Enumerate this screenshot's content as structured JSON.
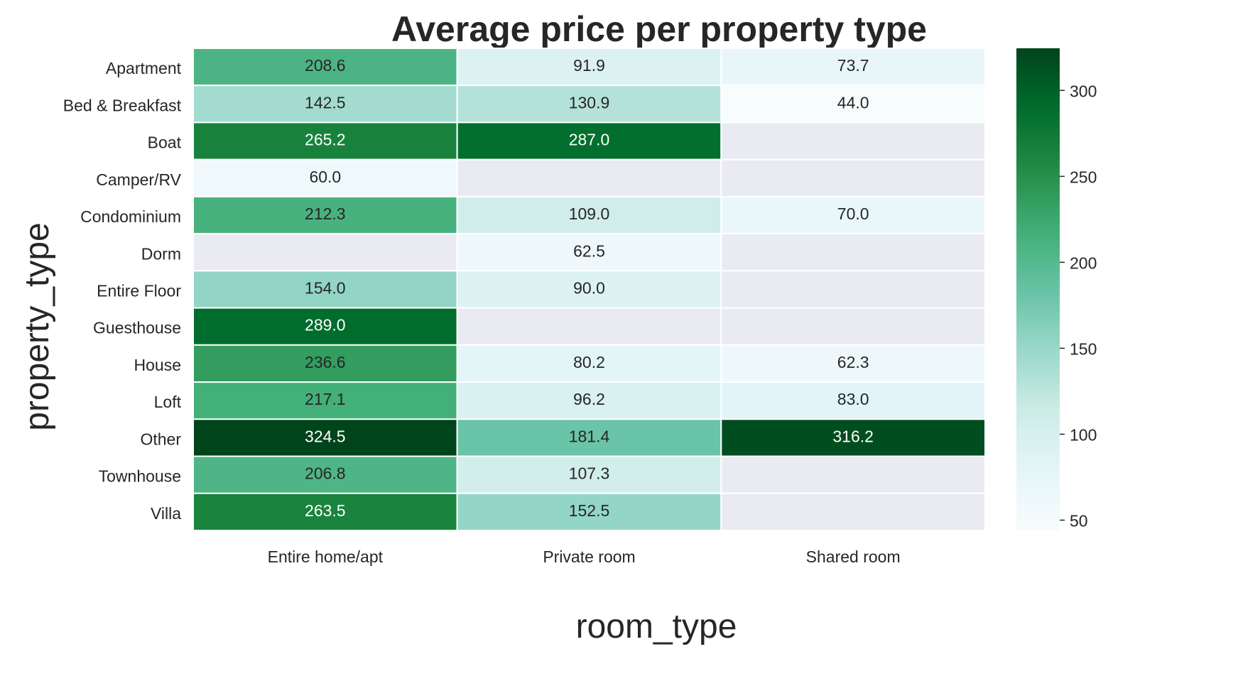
{
  "chart_data": {
    "type": "heatmap",
    "title": "Average price per property type",
    "xlabel": "room_type",
    "ylabel": "property_type",
    "x_categories": [
      "Entire home/apt",
      "Private room",
      "Shared room"
    ],
    "y_categories": [
      "Apartment",
      "Bed & Breakfast",
      "Boat",
      "Camper/RV",
      "Condominium",
      "Dorm",
      "Entire Floor",
      "Guesthouse",
      "House",
      "Loft",
      "Other",
      "Townhouse",
      "Villa"
    ],
    "values": [
      [
        208.6,
        91.9,
        73.7
      ],
      [
        142.5,
        130.9,
        44.0
      ],
      [
        265.2,
        287.0,
        null
      ],
      [
        60.0,
        null,
        null
      ],
      [
        212.3,
        109.0,
        70.0
      ],
      [
        null,
        62.5,
        null
      ],
      [
        154.0,
        90.0,
        null
      ],
      [
        289.0,
        null,
        null
      ],
      [
        236.6,
        80.2,
        62.3
      ],
      [
        217.1,
        96.2,
        83.0
      ],
      [
        324.5,
        181.4,
        316.2
      ],
      [
        206.8,
        107.3,
        null
      ],
      [
        263.5,
        152.5,
        null
      ]
    ],
    "value_format": "0.1f",
    "colormap": "BuGn",
    "missing_color": "#eaeaf2",
    "cell_border_color": "#ffffff",
    "vmin": 44.0,
    "vmax": 324.5,
    "colorbar_ticks": [
      50,
      100,
      150,
      200,
      250,
      300
    ],
    "grid": false
  }
}
